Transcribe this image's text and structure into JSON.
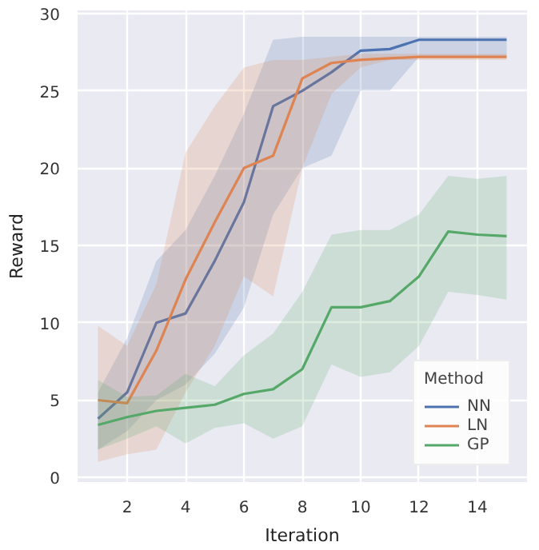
{
  "chart_data": {
    "type": "line",
    "xlabel": "Iteration",
    "ylabel": "Reward",
    "legend_title": "Method",
    "x": [
      1,
      2,
      3,
      4,
      5,
      6,
      7,
      8,
      9,
      10,
      11,
      12,
      13,
      14,
      15
    ],
    "xlim": [
      0.3,
      15.7
    ],
    "ylim": [
      -0.3,
      30.2
    ],
    "xticks": [
      2,
      4,
      6,
      8,
      10,
      12,
      14
    ],
    "yticks": [
      0,
      5,
      10,
      15,
      20,
      25,
      30
    ],
    "grid": true,
    "legend": "bottom right",
    "series": [
      {
        "name": "NN",
        "color": "#4c72b0",
        "values": [
          3.8,
          5.5,
          10,
          10.6,
          14,
          17.8,
          24,
          25,
          26.2,
          27.6,
          27.7,
          28.3,
          28.3,
          28.3,
          28.3
        ],
        "lower": [
          1.8,
          3,
          5,
          6,
          8,
          11,
          17,
          20,
          20.8,
          25,
          25,
          27.2,
          27.2,
          27.2,
          27.2
        ],
        "upper": [
          5.5,
          9,
          14,
          16,
          19.5,
          23.5,
          28.3,
          28.5,
          28.5,
          28.5,
          28.5,
          28.5,
          28.5,
          28.5,
          28.5
        ]
      },
      {
        "name": "LN",
        "color": "#dd8452",
        "values": [
          5,
          4.8,
          8.2,
          12.8,
          16.5,
          20,
          20.8,
          25.8,
          26.8,
          27,
          27.1,
          27.2,
          27.2,
          27.2,
          27.2
        ],
        "lower": [
          1,
          1.5,
          1.8,
          5.5,
          8.5,
          13,
          11.7,
          20,
          24.8,
          26.5,
          27,
          27,
          27,
          27,
          27
        ],
        "upper": [
          9.8,
          8.5,
          12.5,
          21,
          24,
          26.5,
          27,
          27,
          27.2,
          27.4,
          27.4,
          27.4,
          27.4,
          27.4,
          27.4
        ]
      },
      {
        "name": "GP",
        "color": "#55a868",
        "values": [
          3.4,
          3.9,
          4.3,
          4.5,
          4.7,
          5.4,
          5.7,
          7,
          11,
          11,
          11.4,
          13,
          15.9,
          15.7,
          15.6
        ],
        "lower": [
          1.8,
          2.5,
          3.3,
          2.2,
          3.2,
          3.5,
          2.5,
          3.3,
          7.3,
          6.5,
          6.8,
          8.5,
          12,
          11.8,
          11.5
        ],
        "upper": [
          6.3,
          5.2,
          5.3,
          6.7,
          5.9,
          7.9,
          9.3,
          12,
          15.7,
          16,
          16,
          17,
          19.5,
          19.3,
          19.5
        ]
      }
    ]
  }
}
